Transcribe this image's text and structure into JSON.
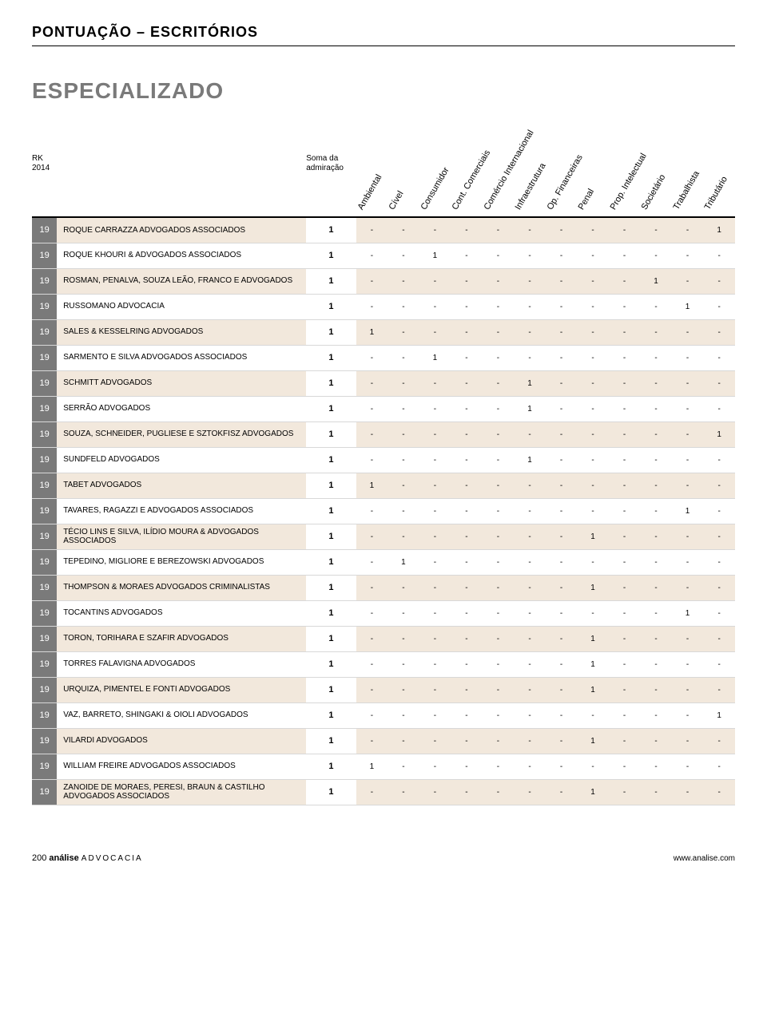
{
  "page_title": "PONTUAÇÃO – ESCRITÓRIOS",
  "section_title": "ESPECIALIZADO",
  "header": {
    "rk_line1": "RK",
    "rk_line2": "2014",
    "soma_line1": "Soma da",
    "soma_line2": "admiração",
    "areas": [
      "Ambiental",
      "Cível",
      "Consumidor",
      "Cont. Comerciais",
      "Comércio Internacional",
      "Infraestrutura",
      "Op. Financeiras",
      "Penal",
      "Prop. Intelectual",
      "Societário",
      "Trabalhista",
      "Tributário"
    ]
  },
  "colors": {
    "rank_bg": "#7a7a7a",
    "row_odd_bg": "#f2e8dc",
    "row_even_bg": "#ffffff",
    "border": "#d8d8d8",
    "title_gray": "#7a7a7a"
  },
  "rows": [
    {
      "rank": "19",
      "name": "ROQUE CARRAZZA ADVOGADOS ASSOCIADOS",
      "soma": "1",
      "vals": [
        "-",
        "-",
        "-",
        "-",
        "-",
        "-",
        "-",
        "-",
        "-",
        "-",
        "-",
        "1"
      ]
    },
    {
      "rank": "19",
      "name": "ROQUE KHOURI & ADVOGADOS ASSOCIADOS",
      "soma": "1",
      "vals": [
        "-",
        "-",
        "1",
        "-",
        "-",
        "-",
        "-",
        "-",
        "-",
        "-",
        "-",
        "-"
      ]
    },
    {
      "rank": "19",
      "name": "ROSMAN, PENALVA, SOUZA LEÃO, FRANCO E ADVOGADOS",
      "soma": "1",
      "vals": [
        "-",
        "-",
        "-",
        "-",
        "-",
        "-",
        "-",
        "-",
        "-",
        "1",
        "-",
        "-"
      ]
    },
    {
      "rank": "19",
      "name": "RUSSOMANO ADVOCACIA",
      "soma": "1",
      "vals": [
        "-",
        "-",
        "-",
        "-",
        "-",
        "-",
        "-",
        "-",
        "-",
        "-",
        "1",
        "-"
      ]
    },
    {
      "rank": "19",
      "name": "SALES & KESSELRING ADVOGADOS",
      "soma": "1",
      "vals": [
        "1",
        "-",
        "-",
        "-",
        "-",
        "-",
        "-",
        "-",
        "-",
        "-",
        "-",
        "-"
      ]
    },
    {
      "rank": "19",
      "name": "SARMENTO E SILVA ADVOGADOS ASSOCIADOS",
      "soma": "1",
      "vals": [
        "-",
        "-",
        "1",
        "-",
        "-",
        "-",
        "-",
        "-",
        "-",
        "-",
        "-",
        "-"
      ]
    },
    {
      "rank": "19",
      "name": "SCHMITT ADVOGADOS",
      "soma": "1",
      "vals": [
        "-",
        "-",
        "-",
        "-",
        "-",
        "1",
        "-",
        "-",
        "-",
        "-",
        "-",
        "-"
      ]
    },
    {
      "rank": "19",
      "name": "SERRÃO ADVOGADOS",
      "soma": "1",
      "vals": [
        "-",
        "-",
        "-",
        "-",
        "-",
        "1",
        "-",
        "-",
        "-",
        "-",
        "-",
        "-"
      ]
    },
    {
      "rank": "19",
      "name": "SOUZA, SCHNEIDER, PUGLIESE E SZTOKFISZ ADVOGADOS",
      "soma": "1",
      "vals": [
        "-",
        "-",
        "-",
        "-",
        "-",
        "-",
        "-",
        "-",
        "-",
        "-",
        "-",
        "1"
      ]
    },
    {
      "rank": "19",
      "name": "SUNDFELD ADVOGADOS",
      "soma": "1",
      "vals": [
        "-",
        "-",
        "-",
        "-",
        "-",
        "1",
        "-",
        "-",
        "-",
        "-",
        "-",
        "-"
      ]
    },
    {
      "rank": "19",
      "name": "TABET ADVOGADOS",
      "soma": "1",
      "vals": [
        "1",
        "-",
        "-",
        "-",
        "-",
        "-",
        "-",
        "-",
        "-",
        "-",
        "-",
        "-"
      ]
    },
    {
      "rank": "19",
      "name": "TAVARES, RAGAZZI E ADVOGADOS ASSOCIADOS",
      "soma": "1",
      "vals": [
        "-",
        "-",
        "-",
        "-",
        "-",
        "-",
        "-",
        "-",
        "-",
        "-",
        "1",
        "-"
      ]
    },
    {
      "rank": "19",
      "name": "TÉCIO LINS E SILVA, ILÍDIO MOURA & ADVOGADOS ASSOCIADOS",
      "soma": "1",
      "vals": [
        "-",
        "-",
        "-",
        "-",
        "-",
        "-",
        "-",
        "1",
        "-",
        "-",
        "-",
        "-"
      ]
    },
    {
      "rank": "19",
      "name": "TEPEDINO, MIGLIORE E BEREZOWSKI ADVOGADOS",
      "soma": "1",
      "vals": [
        "-",
        "1",
        "-",
        "-",
        "-",
        "-",
        "-",
        "-",
        "-",
        "-",
        "-",
        "-"
      ]
    },
    {
      "rank": "19",
      "name": "THOMPSON & MORAES ADVOGADOS CRIMINALISTAS",
      "soma": "1",
      "vals": [
        "-",
        "-",
        "-",
        "-",
        "-",
        "-",
        "-",
        "1",
        "-",
        "-",
        "-",
        "-"
      ]
    },
    {
      "rank": "19",
      "name": "TOCANTINS ADVOGADOS",
      "soma": "1",
      "vals": [
        "-",
        "-",
        "-",
        "-",
        "-",
        "-",
        "-",
        "-",
        "-",
        "-",
        "1",
        "-"
      ]
    },
    {
      "rank": "19",
      "name": "TORON, TORIHARA E SZAFIR ADVOGADOS",
      "soma": "1",
      "vals": [
        "-",
        "-",
        "-",
        "-",
        "-",
        "-",
        "-",
        "1",
        "-",
        "-",
        "-",
        "-"
      ]
    },
    {
      "rank": "19",
      "name": "TORRES FALAVIGNA ADVOGADOS",
      "soma": "1",
      "vals": [
        "-",
        "-",
        "-",
        "-",
        "-",
        "-",
        "-",
        "1",
        "-",
        "-",
        "-",
        "-"
      ]
    },
    {
      "rank": "19",
      "name": "URQUIZA, PIMENTEL E FONTI ADVOGADOS",
      "soma": "1",
      "vals": [
        "-",
        "-",
        "-",
        "-",
        "-",
        "-",
        "-",
        "1",
        "-",
        "-",
        "-",
        "-"
      ]
    },
    {
      "rank": "19",
      "name": "VAZ, BARRETO, SHINGAKI & OIOLI ADVOGADOS",
      "soma": "1",
      "vals": [
        "-",
        "-",
        "-",
        "-",
        "-",
        "-",
        "-",
        "-",
        "-",
        "-",
        "-",
        "1"
      ]
    },
    {
      "rank": "19",
      "name": "VILARDI ADVOGADOS",
      "soma": "1",
      "vals": [
        "-",
        "-",
        "-",
        "-",
        "-",
        "-",
        "-",
        "1",
        "-",
        "-",
        "-",
        "-"
      ]
    },
    {
      "rank": "19",
      "name": "WILLIAM FREIRE ADVOGADOS ASSOCIADOS",
      "soma": "1",
      "vals": [
        "1",
        "-",
        "-",
        "-",
        "-",
        "-",
        "-",
        "-",
        "-",
        "-",
        "-",
        "-"
      ]
    },
    {
      "rank": "19",
      "name": "ZANOIDE DE MORAES, PERESI, BRAUN & CASTILHO ADVOGADOS ASSOCIADOS",
      "soma": "1",
      "vals": [
        "-",
        "-",
        "-",
        "-",
        "-",
        "-",
        "-",
        "1",
        "-",
        "-",
        "-",
        "-"
      ]
    }
  ],
  "footer": {
    "page_number": "200",
    "brand": "análise",
    "brand_sub": "ADVOCACIA",
    "url": "www.analise.com"
  }
}
